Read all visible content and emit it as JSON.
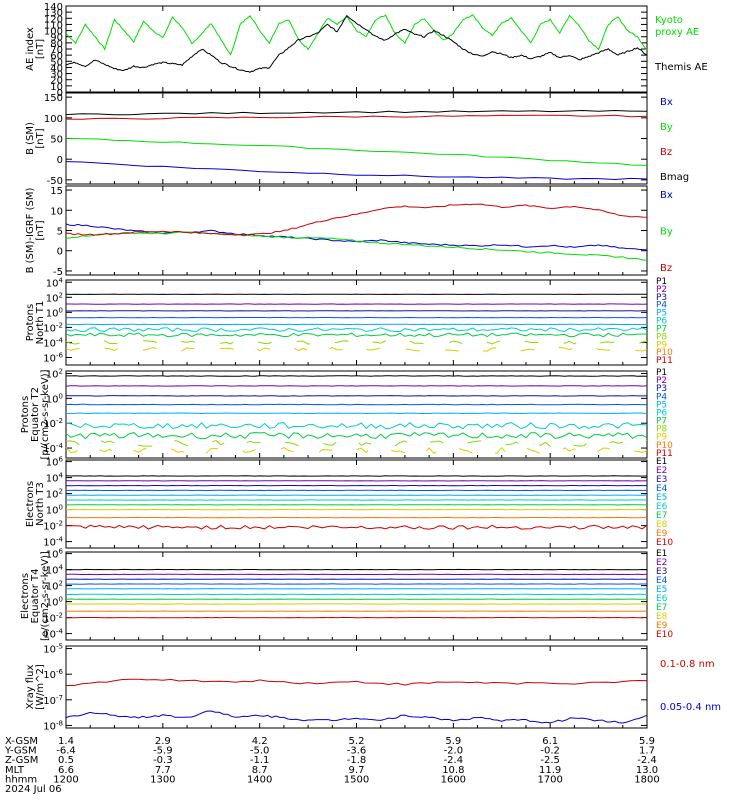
{
  "chart_data": [
    {
      "type": "line",
      "ylabel": [
        "AE index",
        "[nT]"
      ],
      "yticks": [
        "0",
        "10",
        "20",
        "30",
        "40",
        "50",
        "60",
        "70",
        "80",
        "90",
        "100",
        "110",
        "120",
        "130",
        "140"
      ],
      "ylim": [
        0,
        140
      ],
      "series": [
        {
          "name": "Kyoto proxy AE",
          "label_lines": [
            "Kyoto",
            "proxy AE"
          ],
          "color": "#00dd00",
          "x": [
            0,
            0.1,
            0.2,
            0.3,
            0.4,
            0.5,
            0.6,
            0.7,
            0.8,
            0.9,
            1.0,
            1.1,
            1.2,
            1.3,
            1.4,
            1.5,
            1.6,
            1.7,
            1.8,
            1.9,
            2.0,
            2.1,
            2.2,
            2.3,
            2.4,
            2.5,
            2.6,
            2.7,
            2.8,
            2.9,
            3.0,
            3.1,
            3.2,
            3.3,
            3.4,
            3.5,
            3.6,
            3.7,
            3.8,
            3.9,
            4.0,
            4.1,
            4.2,
            4.3,
            4.4,
            4.5,
            4.6,
            4.7,
            4.8,
            4.9,
            5.0,
            5.1,
            5.2,
            5.3,
            5.4,
            5.5,
            5.6,
            5.7,
            5.8,
            5.9,
            6.0
          ],
          "values": [
            95,
            80,
            110,
            90,
            70,
            118,
            100,
            82,
            115,
            100,
            88,
            122,
            105,
            78,
            95,
            112,
            85,
            60,
            110,
            125,
            100,
            80,
            112,
            118,
            85,
            70,
            95,
            120,
            110,
            122,
            100,
            90,
            118,
            125,
            95,
            80,
            110,
            120,
            100,
            84,
            96,
            118,
            125,
            105,
            92,
            112,
            120,
            100,
            80,
            110,
            118,
            96,
            125,
            108,
            84,
            70,
            110,
            122,
            100,
            90,
            68
          ]
        },
        {
          "name": "Themis AE",
          "color": "#000000",
          "x": [
            0,
            0.1,
            0.2,
            0.3,
            0.4,
            0.5,
            0.6,
            0.7,
            0.8,
            0.9,
            1.0,
            1.1,
            1.2,
            1.3,
            1.4,
            1.5,
            1.6,
            1.7,
            1.8,
            1.9,
            2.0,
            2.1,
            2.2,
            2.3,
            2.4,
            2.5,
            2.6,
            2.7,
            2.8,
            2.9,
            3.0,
            3.1,
            3.2,
            3.3,
            3.4,
            3.5,
            3.6,
            3.7,
            3.8,
            3.9,
            4.0,
            4.1,
            4.2,
            4.3,
            4.4,
            4.5,
            4.6,
            4.7,
            4.8,
            4.9,
            5.0,
            5.1,
            5.2,
            5.3,
            5.4,
            5.5,
            5.6,
            5.7,
            5.8,
            5.9,
            6.0
          ],
          "values": [
            45,
            48,
            42,
            52,
            45,
            38,
            35,
            42,
            40,
            45,
            48,
            46,
            44,
            58,
            70,
            60,
            48,
            42,
            36,
            33,
            38,
            40,
            60,
            72,
            85,
            90,
            96,
            110,
            98,
            125,
            112,
            102,
            90,
            84,
            95,
            102,
            94,
            90,
            100,
            92,
            82,
            70,
            62,
            58,
            66,
            62,
            56,
            60,
            54,
            58,
            64,
            56,
            60,
            52,
            58,
            64,
            70,
            60,
            66,
            72,
            60
          ]
        }
      ]
    },
    {
      "type": "line",
      "ylabel": [
        "B (SM)",
        "[nT]"
      ],
      "yticks": [
        "-50",
        "0",
        "50",
        "100",
        "150"
      ],
      "ylim": [
        -60,
        160
      ],
      "series": [
        {
          "name": "Bx",
          "color": "#0000cc",
          "x": [
            0,
            1,
            2,
            3,
            4,
            5,
            6
          ],
          "values": [
            -5,
            -18,
            -29,
            -37,
            -43,
            -47,
            -48
          ]
        },
        {
          "name": "By",
          "color": "#00dd00",
          "x": [
            0,
            1,
            2,
            3,
            4,
            5,
            6
          ],
          "values": [
            50,
            42,
            33,
            22,
            11,
            -2,
            -15
          ]
        },
        {
          "name": "Bz",
          "color": "#cc0000",
          "x": [
            0,
            1,
            2,
            3,
            4,
            5,
            6
          ],
          "values": [
            96,
            99,
            101,
            103,
            104,
            105,
            104
          ]
        },
        {
          "name": "Bmag",
          "color": "#000000",
          "x": [
            0,
            1,
            2,
            3,
            4,
            5,
            6
          ],
          "values": [
            108,
            110,
            112,
            114,
            115,
            116,
            116
          ]
        }
      ]
    },
    {
      "type": "line",
      "ylabel": [
        "B (SM)-IGRF (SM)",
        "[nT]"
      ],
      "yticks": [
        "-5",
        "0",
        "5",
        "10",
        "15"
      ],
      "ylim": [
        -6,
        16
      ],
      "series": [
        {
          "name": "Bx",
          "color": "#0000cc",
          "x": [
            0,
            0.25,
            0.5,
            0.75,
            1,
            1.25,
            1.5,
            1.75,
            2,
            2.25,
            2.5,
            2.75,
            3,
            3.25,
            3.5,
            3.75,
            4,
            4.25,
            4.5,
            4.75,
            5,
            5.25,
            5.5,
            5.75,
            6
          ],
          "values": [
            6.5,
            6.2,
            5.4,
            4.8,
            4.4,
            4.6,
            4.9,
            4.2,
            3.8,
            3.4,
            3.0,
            2.6,
            2.2,
            2.6,
            2.0,
            1.6,
            1.4,
            1.2,
            1.5,
            1.0,
            1.3,
            0.8,
            1.4,
            0.6,
            0.2
          ]
        },
        {
          "name": "By",
          "color": "#00dd00",
          "x": [
            0,
            0.25,
            0.5,
            0.75,
            1,
            1.25,
            1.5,
            1.75,
            2,
            2.25,
            2.5,
            2.75,
            3,
            3.25,
            3.5,
            3.75,
            4,
            4.25,
            4.5,
            4.75,
            5,
            5.25,
            5.5,
            5.75,
            6
          ],
          "values": [
            3.2,
            3.8,
            4.3,
            4.4,
            4.2,
            4.6,
            4.2,
            3.9,
            3.6,
            3.3,
            3.2,
            3.0,
            2.4,
            1.9,
            1.6,
            1.2,
            0.9,
            0.5,
            0.2,
            -0.2,
            -0.5,
            -0.8,
            -1.2,
            -1.6,
            -2.3
          ]
        },
        {
          "name": "Bz",
          "color": "#cc0000",
          "x": [
            0,
            0.25,
            0.5,
            0.75,
            1,
            1.25,
            1.5,
            1.75,
            2,
            2.25,
            2.5,
            2.75,
            3,
            3.25,
            3.5,
            3.75,
            4,
            4.25,
            4.5,
            4.75,
            5,
            5.25,
            5.5,
            5.75,
            6
          ],
          "values": [
            4.2,
            4.0,
            4.2,
            4.6,
            4.8,
            4.6,
            4.2,
            4.0,
            4.1,
            4.9,
            6.5,
            8.0,
            9.0,
            10.4,
            11.0,
            10.6,
            11.3,
            11.6,
            10.8,
            11.2,
            10.5,
            11.0,
            10.0,
            8.6,
            8.3
          ]
        }
      ]
    },
    {
      "type": "line",
      "yscale": "log",
      "ylabel": [
        "Protons",
        "North T1"
      ],
      "yticks_exp": [
        -6,
        -4,
        -2,
        0,
        2,
        4
      ],
      "ylim_exp": [
        -7,
        4.3
      ],
      "series_labels": [
        "P1",
        "P2",
        "P3",
        "P4",
        "P5",
        "P6",
        "P7",
        "P8",
        "P9",
        "P10",
        "P11"
      ],
      "series_colors": [
        "#000000",
        "#7700aa",
        "#1111aa",
        "#0055ff",
        "#00aaff",
        "#00cccc",
        "#00cc44",
        "#88dd00",
        "#ddcc00",
        "#ff7700",
        "#cc0000"
      ],
      "series_values_exp": [
        2.4,
        1.1,
        0.2,
        -0.7,
        -1.6,
        -2.3,
        -3.0,
        -4.0,
        -4.9,
        null,
        null
      ]
    },
    {
      "type": "line",
      "yscale": "log",
      "ylabel": [
        "Protons",
        "Equator T2",
        "[p/(cm2-s-sr-keV)]"
      ],
      "yticks_exp": [
        -4,
        -2,
        0,
        2
      ],
      "ylim_exp": [
        -4.8,
        2.2
      ],
      "series_labels": [
        "P1",
        "P2",
        "P3",
        "P4",
        "P5",
        "P6",
        "P7",
        "P8",
        "P9",
        "P10",
        "P11"
      ],
      "series_colors": [
        "#000000",
        "#7700aa",
        "#1111aa",
        "#0055ff",
        "#00aaff",
        "#00cccc",
        "#00cc44",
        "#88dd00",
        "#ddcc00",
        "#ff7700",
        "#cc0000"
      ],
      "series_values_exp": [
        1.8,
        1.0,
        0.2,
        -0.5,
        -1.2,
        -2.2,
        -3.0,
        -3.6,
        -4.2,
        null,
        null
      ]
    },
    {
      "type": "line",
      "yscale": "log",
      "ylabel": [
        "Electrons",
        "North T3"
      ],
      "yticks_exp": [
        -4,
        -2,
        0,
        2,
        4,
        6
      ],
      "ylim_exp": [
        -4.8,
        6.2
      ],
      "series_labels": [
        "E1",
        "E2",
        "E3",
        "E4",
        "E5",
        "E6",
        "E7",
        "E8",
        "E9",
        "E10"
      ],
      "series_colors": [
        "#000000",
        "#7700aa",
        "#1111aa",
        "#0055ff",
        "#00aaff",
        "#00cccc",
        "#00cc44",
        "#ddcc00",
        "#ff7700",
        "#cc0000"
      ],
      "series_values_exp": [
        4.2,
        3.6,
        3.0,
        2.4,
        1.8,
        1.2,
        0.6,
        0.0,
        -1.0,
        -2.2
      ]
    },
    {
      "type": "line",
      "yscale": "log",
      "ylabel": [
        "Electrons",
        "Equator T4",
        "[e/(cm2-s-sr-keV)]"
      ],
      "yticks_exp": [
        -4,
        -2,
        0,
        2,
        4,
        6
      ],
      "ylim_exp": [
        -4.8,
        6.2
      ],
      "series_labels": [
        "E1",
        "E2",
        "E3",
        "E4",
        "E5",
        "E6",
        "E7",
        "E8",
        "E9",
        "E10"
      ],
      "series_colors": [
        "#000000",
        "#7700aa",
        "#1111aa",
        "#0055ff",
        "#00aaff",
        "#00cccc",
        "#00cc44",
        "#ddcc00",
        "#ff7700",
        "#cc0000"
      ],
      "series_values_exp": [
        4.0,
        3.4,
        2.8,
        2.2,
        1.6,
        0.9,
        0.3,
        -0.3,
        -1.2,
        -2.0
      ]
    },
    {
      "type": "line",
      "yscale": "log",
      "ylabel": [
        "Xray flux",
        "[W/m^2]"
      ],
      "yticks_exp": [
        -8,
        -7,
        -6,
        -5
      ],
      "ylim_exp": [
        -8.1,
        -4.9
      ],
      "series": [
        {
          "name": "0.1-0.8 nm",
          "color": "#cc0000",
          "x": [
            0,
            0.5,
            1,
            1.5,
            2,
            2.5,
            3,
            3.5,
            4,
            4.5,
            5,
            5.5,
            6
          ],
          "values_exp": [
            -6.45,
            -6.25,
            -6.2,
            -6.3,
            -6.25,
            -6.35,
            -6.3,
            -6.4,
            -6.3,
            -6.35,
            -6.35,
            -6.35,
            -6.25
          ]
        },
        {
          "name": "0.05-0.4 nm",
          "color": "#0000cc",
          "x": [
            0,
            0.25,
            0.5,
            0.75,
            1,
            1.25,
            1.5,
            1.75,
            2,
            2.25,
            2.5,
            2.75,
            3,
            3.25,
            3.5,
            3.75,
            4,
            4.25,
            4.5,
            4.75,
            5,
            5.25,
            5.5,
            5.75,
            6
          ],
          "values_exp": [
            -7.7,
            -7.5,
            -7.6,
            -7.7,
            -7.6,
            -7.7,
            -7.4,
            -7.7,
            -7.6,
            -7.7,
            -7.8,
            -7.8,
            -7.7,
            -7.8,
            -7.6,
            -7.7,
            -7.8,
            -7.7,
            -7.8,
            -7.8,
            -7.9,
            -7.7,
            -7.8,
            -7.9,
            -7.6
          ]
        }
      ]
    }
  ],
  "axis": {
    "x_range": [
      1200,
      1800
    ],
    "rows": [
      {
        "name": "X-GSM",
        "values": [
          "1.4",
          "2.9",
          "4.2",
          "5.2",
          "5.9",
          "6.1",
          "5.9"
        ]
      },
      {
        "name": "Y-GSM",
        "values": [
          "-6.4",
          "-5.9",
          "-5.0",
          "-3.6",
          "-2.0",
          "-0.2",
          "1.7"
        ]
      },
      {
        "name": "Z-GSM",
        "values": [
          "0.5",
          "-0.3",
          "-1.1",
          "-1.8",
          "-2.4",
          "-2.5",
          "-2.4"
        ]
      },
      {
        "name": "MLT",
        "values": [
          "6.6",
          "7.7",
          "8.7",
          "9.7",
          "10.8",
          "11.9",
          "13.0"
        ]
      },
      {
        "name": "hhmm",
        "values": [
          "1200",
          "1300",
          "1400",
          "1500",
          "1600",
          "1700",
          "1800"
        ]
      }
    ],
    "date": "2024 Jul 06"
  }
}
